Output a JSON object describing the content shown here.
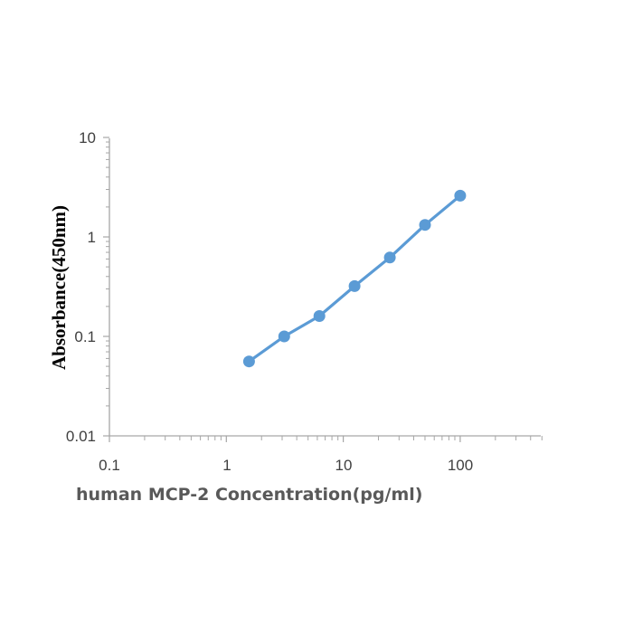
{
  "chart_data": {
    "type": "line",
    "xlabel": "human MCP-2 Concentration(pg/ml)",
    "ylabel": "Absorbance(450nm)",
    "xscale": "log",
    "yscale": "log",
    "xlim": [
      0.1,
      500
    ],
    "ylim": [
      0.01,
      10
    ],
    "xticks": [
      "0.1",
      "1",
      "10",
      "100"
    ],
    "yticks": [
      "10",
      "1",
      "0.1",
      "0.01"
    ],
    "grid": false,
    "legend": "none",
    "series": [
      {
        "x": [
          1.5625,
          3.125,
          6.25,
          12.5,
          25,
          50,
          100
        ],
        "y": [
          0.056,
          0.1,
          0.16,
          0.32,
          0.62,
          1.32,
          2.6
        ]
      }
    ],
    "colors": {
      "series": "#5b9bd5",
      "axis": "#a6a6a6"
    }
  }
}
